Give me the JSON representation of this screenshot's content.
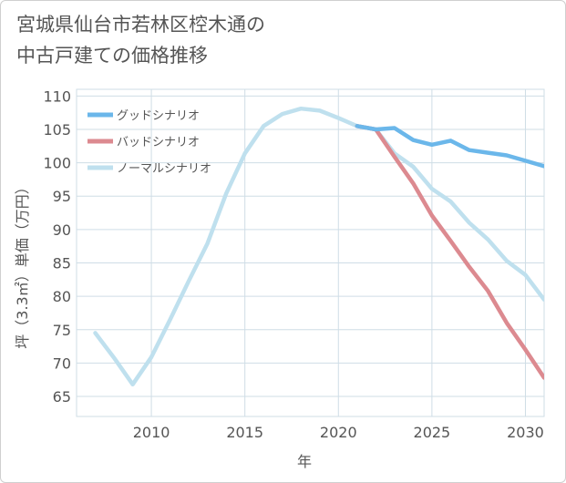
{
  "chart_data": {
    "type": "line",
    "title": "宮城県仙台市若林区椌木通の\n中古戸建ての価格推移",
    "xlabel": "年",
    "ylabel": "坪（3.3㎡）単価（万円）",
    "xlim": [
      2006,
      2031
    ],
    "ylim": [
      62,
      111
    ],
    "xticks": [
      2010,
      2015,
      2020,
      2025,
      2030
    ],
    "yticks": [
      65,
      70,
      75,
      80,
      85,
      90,
      95,
      100,
      105,
      110
    ],
    "grid": true,
    "legend_position": "top-left",
    "series": [
      {
        "name": "グッドシナリオ",
        "color": "#6bb7ea",
        "x": [
          2021,
          2022,
          2023,
          2024,
          2025,
          2026,
          2027,
          2028,
          2029,
          2030,
          2031
        ],
        "values": [
          105.5,
          105.0,
          105.2,
          103.4,
          102.7,
          103.3,
          101.9,
          101.5,
          101.1,
          100.3,
          99.5
        ]
      },
      {
        "name": "バッドシナリオ",
        "color": "#dc8a90",
        "x": [
          2021,
          2022,
          2023,
          2024,
          2025,
          2026,
          2027,
          2028,
          2029,
          2030,
          2031
        ],
        "values": [
          105.5,
          105.0,
          100.9,
          96.9,
          92.1,
          88.3,
          84.4,
          80.8,
          76.0,
          72.0,
          67.8
        ]
      },
      {
        "name": "ノーマルシナリオ",
        "color": "#bfe0ee",
        "x": [
          2007,
          2008,
          2009,
          2010,
          2011,
          2012,
          2013,
          2014,
          2015,
          2016,
          2017,
          2018,
          2019,
          2020,
          2021,
          2022,
          2023,
          2024,
          2025,
          2026,
          2027,
          2028,
          2029,
          2030,
          2031
        ],
        "values": [
          74.5,
          70.8,
          66.8,
          70.9,
          76.5,
          82.3,
          87.9,
          95.4,
          101.4,
          105.5,
          107.3,
          108.1,
          107.8,
          106.7,
          105.5,
          105.0,
          101.4,
          99.4,
          96.1,
          94.2,
          91.0,
          88.5,
          85.3,
          83.2,
          79.5
        ]
      }
    ]
  }
}
